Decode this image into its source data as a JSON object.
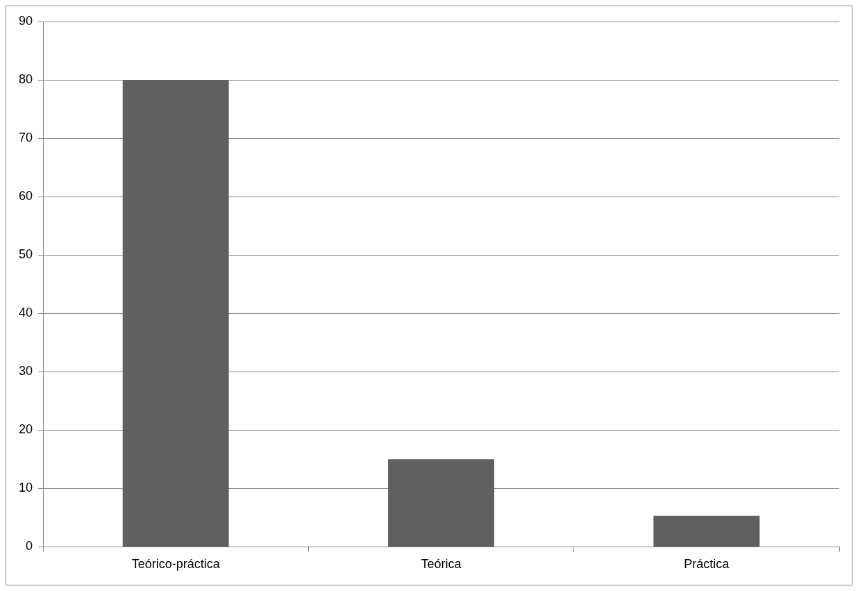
{
  "chart_data": {
    "type": "bar",
    "categories": [
      "Teórico-práctica",
      "Teórica",
      "Práctica"
    ],
    "values": [
      80,
      15,
      5.3
    ],
    "color": "#606060",
    "ylim": [
      0,
      90
    ],
    "yticks": [
      0,
      10,
      20,
      30,
      40,
      50,
      60,
      70,
      80,
      90
    ],
    "grid": "y",
    "legend": false
  }
}
